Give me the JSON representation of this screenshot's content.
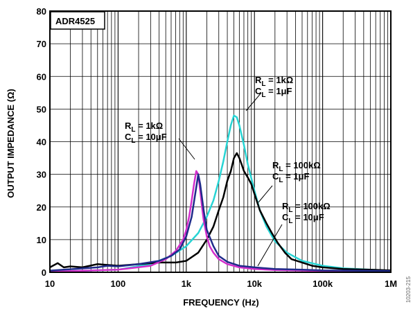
{
  "chart_data": {
    "type": "line",
    "title": "",
    "xlabel": "FREQUENCY (Hz)",
    "ylabel": "OUTPUT IMPEDANCE (Ω)",
    "xscale": "log",
    "xlim": [
      10,
      1000000
    ],
    "ylim": [
      0,
      80
    ],
    "grid": true,
    "x_ticks": [
      {
        "value": 10,
        "label": "10"
      },
      {
        "value": 100,
        "label": "100"
      },
      {
        "value": 1000,
        "label": "1k"
      },
      {
        "value": 10000,
        "label": "10k"
      },
      {
        "value": 100000,
        "label": "100k"
      },
      {
        "value": 1000000,
        "label": "1M"
      }
    ],
    "y_ticks": [
      {
        "value": 0,
        "label": "0"
      },
      {
        "value": 10,
        "label": "10"
      },
      {
        "value": 20,
        "label": "20"
      },
      {
        "value": 30,
        "label": "30"
      },
      {
        "value": 40,
        "label": "40"
      },
      {
        "value": 50,
        "label": "50"
      },
      {
        "value": 60,
        "label": "60"
      },
      {
        "value": 70,
        "label": "70"
      },
      {
        "value": 80,
        "label": "80"
      }
    ],
    "part_label": "ADR4525",
    "figure_number": "10203-215",
    "series": [
      {
        "color": "#27d4d4",
        "x": [
          10,
          100,
          300,
          600,
          1000,
          1500,
          2000,
          2500,
          3000,
          3500,
          4000,
          4500,
          5000,
          5500,
          6000,
          7000,
          8000,
          10000,
          12000,
          15000,
          20000,
          30000,
          50000,
          100000,
          200000,
          500000,
          1000000
        ],
        "y": [
          0.2,
          0.8,
          2.5,
          5,
          8,
          12,
          17,
          22,
          28,
          34,
          40,
          45,
          48,
          47.5,
          45,
          39,
          33,
          25,
          19,
          14,
          9.5,
          6,
          3.5,
          2,
          1.2,
          0.8,
          0.5
        ]
      },
      {
        "color": "#000000",
        "x": [
          10,
          13,
          16,
          20,
          30,
          50,
          100,
          200,
          400,
          700,
          1000,
          1500,
          2000,
          2500,
          3000,
          3500,
          4000,
          4500,
          5000,
          5500,
          6000,
          6500,
          7000,
          8000,
          9000,
          10000,
          12000,
          15000,
          18000,
          22000,
          28000,
          35000,
          50000,
          70000,
          100000,
          200000,
          500000,
          1000000
        ],
        "y": [
          1.5,
          2.8,
          1.5,
          1.8,
          1.5,
          2.5,
          2,
          2.5,
          3,
          3,
          3.5,
          6,
          10,
          14,
          19,
          23,
          28,
          31,
          35,
          36.5,
          35,
          33,
          31,
          29,
          27,
          24,
          19,
          15,
          12,
          9,
          6,
          4,
          3,
          2,
          1.5,
          1,
          0.8,
          0.6
        ]
      },
      {
        "color": "#d22ecb",
        "x": [
          10,
          100,
          300,
          500,
          700,
          900,
          1000,
          1100,
          1200,
          1300,
          1400,
          1500,
          1600,
          1700,
          1800,
          2000,
          2200,
          2500,
          3000,
          4000,
          6000,
          10000,
          20000,
          100000,
          1000000
        ],
        "y": [
          0.2,
          0.8,
          2,
          4,
          6.5,
          10,
          13,
          17,
          22,
          27,
          31,
          30,
          25,
          20,
          16,
          11,
          8,
          6,
          4,
          2.5,
          1.5,
          1,
          0.7,
          0.4,
          0.3
        ]
      },
      {
        "color": "#1f2a8a",
        "x": [
          10,
          50,
          70,
          100,
          200,
          400,
          600,
          800,
          1000,
          1200,
          1400,
          1500,
          1600,
          1800,
          2000,
          2500,
          3000,
          4000,
          6000,
          10000,
          20000,
          50000,
          100000,
          1000000
        ],
        "y": [
          0.5,
          1.5,
          2,
          1.8,
          2.5,
          3.5,
          5,
          7,
          11,
          17,
          26,
          30,
          27,
          19,
          13,
          8,
          5,
          3.2,
          2,
          1.5,
          1,
          0.8,
          0.6,
          0.4
        ]
      }
    ],
    "annotations": [
      {
        "text": "RL = 1kΩ",
        "line2": "CL = 1μF",
        "r_sub": "L",
        "r_main": "R",
        "r_val": " = 1kΩ",
        "c_main": "C",
        "c_sub": "L",
        "c_val": " = 1μF"
      },
      {
        "text": "RL = 1kΩ",
        "line2": "CL = 10μF",
        "r_main": "R",
        "r_sub": "L",
        "r_val": " = 1kΩ",
        "c_main": "C",
        "c_sub": "L",
        "c_val": " = 10μF"
      },
      {
        "text": "RL = 100kΩ",
        "line2": "CL = 1μF",
        "r_main": "R",
        "r_sub": "L",
        "r_val": " = 100kΩ",
        "c_main": "C",
        "c_sub": "L",
        "c_val": " = 1μF"
      },
      {
        "text": "RL = 100kΩ",
        "line2": "CL = 10μF",
        "r_main": "R",
        "r_sub": "L",
        "r_val": " = 100kΩ",
        "c_main": "C",
        "c_sub": "L",
        "c_val": " = 10μF"
      }
    ]
  }
}
